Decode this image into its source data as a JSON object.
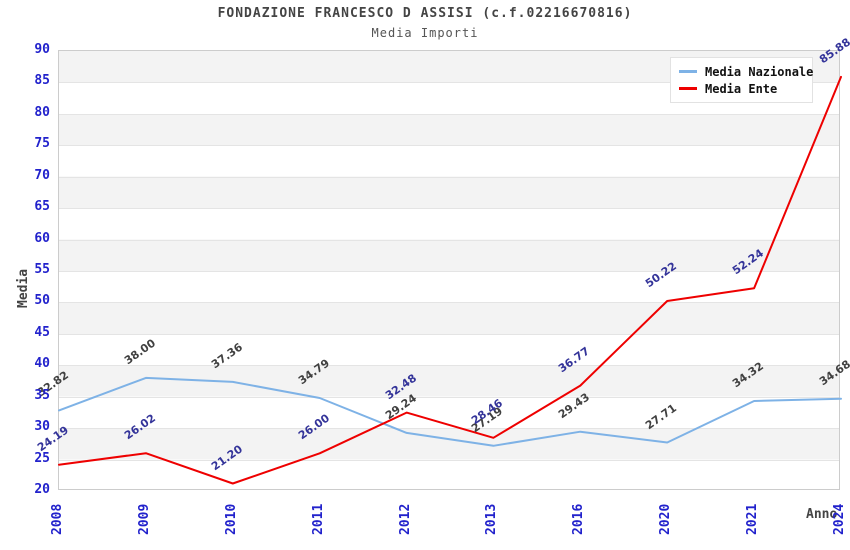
{
  "title": "FONDAZIONE FRANCESCO D ASSISI (c.f.02216670816)",
  "subtitle": "Media Importi",
  "chart_data": {
    "type": "line",
    "title": "FONDAZIONE FRANCESCO D ASSISI (c.f.02216670816)",
    "subtitle": "Media Importi",
    "xlabel": "Anno",
    "ylabel": "Media",
    "categories": [
      "2008",
      "2009",
      "2010",
      "2011",
      "2012",
      "2013",
      "2016",
      "2020",
      "2021",
      "2024"
    ],
    "series": [
      {
        "name": "Media Nazionale",
        "color": "#7eb2e6",
        "label_color": "#404040",
        "values": [
          32.82,
          38.0,
          37.36,
          34.79,
          29.24,
          27.19,
          29.43,
          27.71,
          34.32,
          34.68
        ],
        "labels": [
          "32.82",
          "38.00",
          "37.36",
          "34.79",
          "29.24",
          "27.19",
          "29.43",
          "27.71",
          "34.32",
          "34.68"
        ]
      },
      {
        "name": "Media Ente",
        "color": "#ee0000",
        "label_color": "#333399",
        "values": [
          24.19,
          26.02,
          21.2,
          26.0,
          32.48,
          28.46,
          36.77,
          50.22,
          52.24,
          85.88
        ],
        "labels": [
          "24.19",
          "26.02",
          "21.20",
          "26.00",
          "32.48",
          "28.46",
          "36.77",
          "50.22",
          "52.24",
          "85.88"
        ]
      }
    ],
    "ylim": [
      20,
      90
    ],
    "ytick_step": 5,
    "yticks": [
      90,
      85,
      80,
      75,
      70,
      65,
      60,
      55,
      50,
      45,
      40,
      35,
      30,
      25,
      20
    ],
    "grid": "horizontal-bands",
    "legend_position": "top-right",
    "colors": {
      "tick_label": "#2222cc",
      "axis_title": "#444444",
      "band_gray": "#f3f3f3",
      "band_white": "#ffffff",
      "plot_border": "#cccccc"
    }
  }
}
